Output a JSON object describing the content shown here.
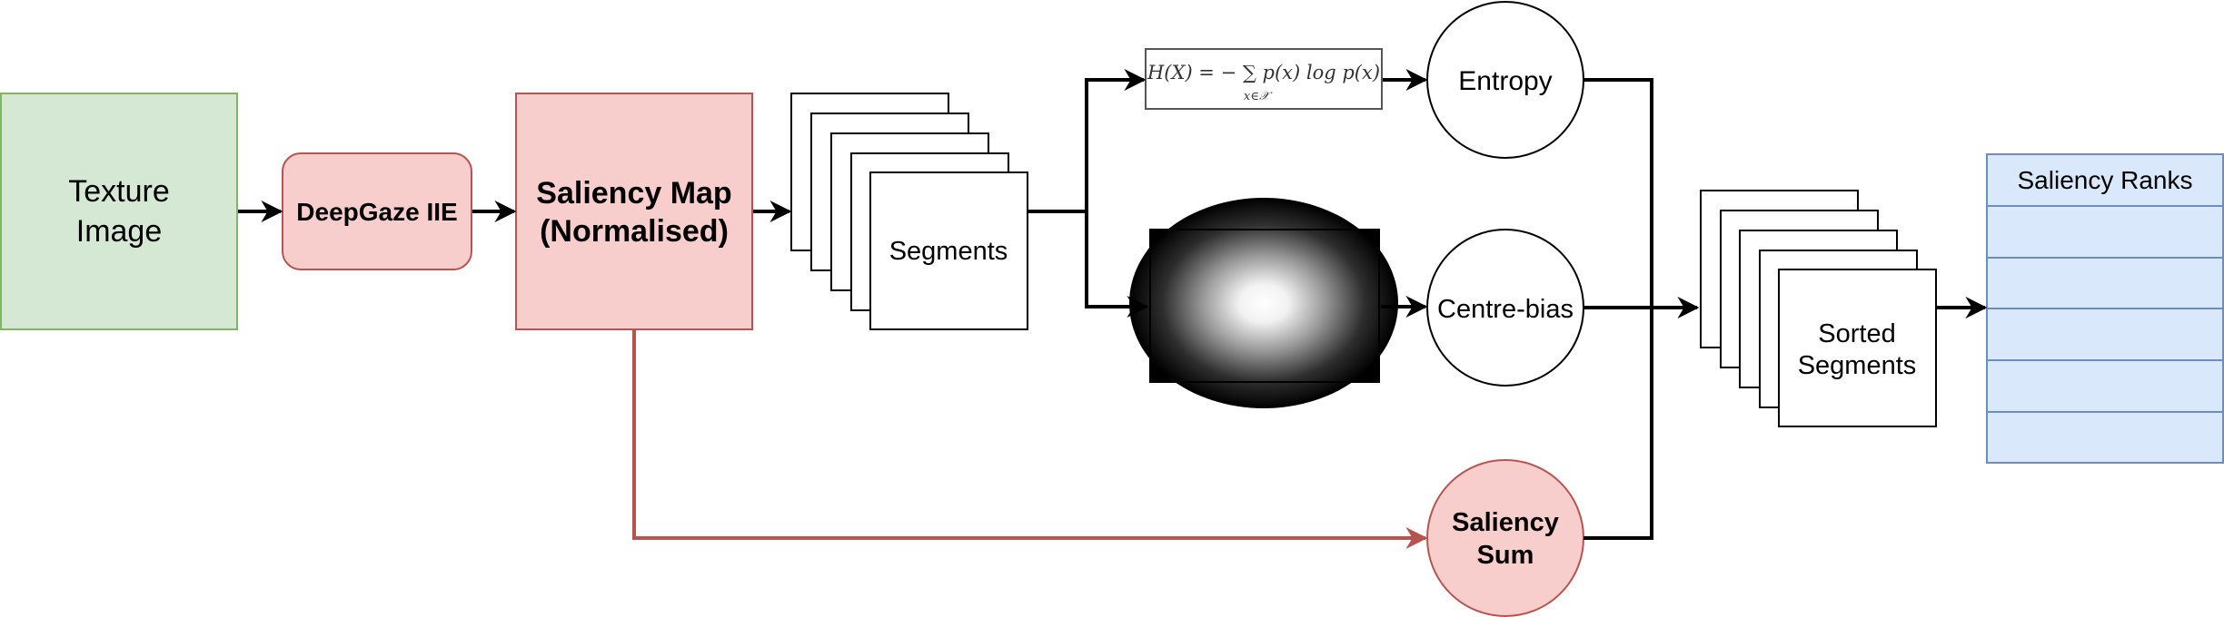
{
  "nodes": {
    "texture_image": {
      "line1": "Texture",
      "line2": "Image"
    },
    "deepgaze": {
      "label": "DeepGaze IIE"
    },
    "saliency_map": {
      "line1": "Saliency Map",
      "line2": "(Normalised)"
    },
    "segments": {
      "label": "Segments"
    },
    "entropy_formula": {
      "text": "H(X) = − ∑ p(x) log p(x)",
      "subscript": "x∈𝒳"
    },
    "centre_bias_image": {
      "icon": "gaussian-blob-image"
    },
    "entropy": {
      "label": "Entropy"
    },
    "centre_bias": {
      "label": "Centre-bias"
    },
    "saliency_sum": {
      "line1": "Saliency",
      "line2": "Sum"
    },
    "sorted_segments": {
      "line1": "Sorted",
      "line2": "Segments"
    },
    "saliency_ranks": {
      "header": "Saliency Ranks",
      "row_count": 5
    }
  },
  "colors": {
    "green_fill": "#d5e8d4",
    "green_stroke": "#82b366",
    "red_fill": "#f8cecc",
    "red_stroke": "#b85450",
    "blue_fill": "#dae8fc",
    "blue_stroke": "#6c8ebf",
    "line": "#000000",
    "red_line": "#b85450"
  }
}
